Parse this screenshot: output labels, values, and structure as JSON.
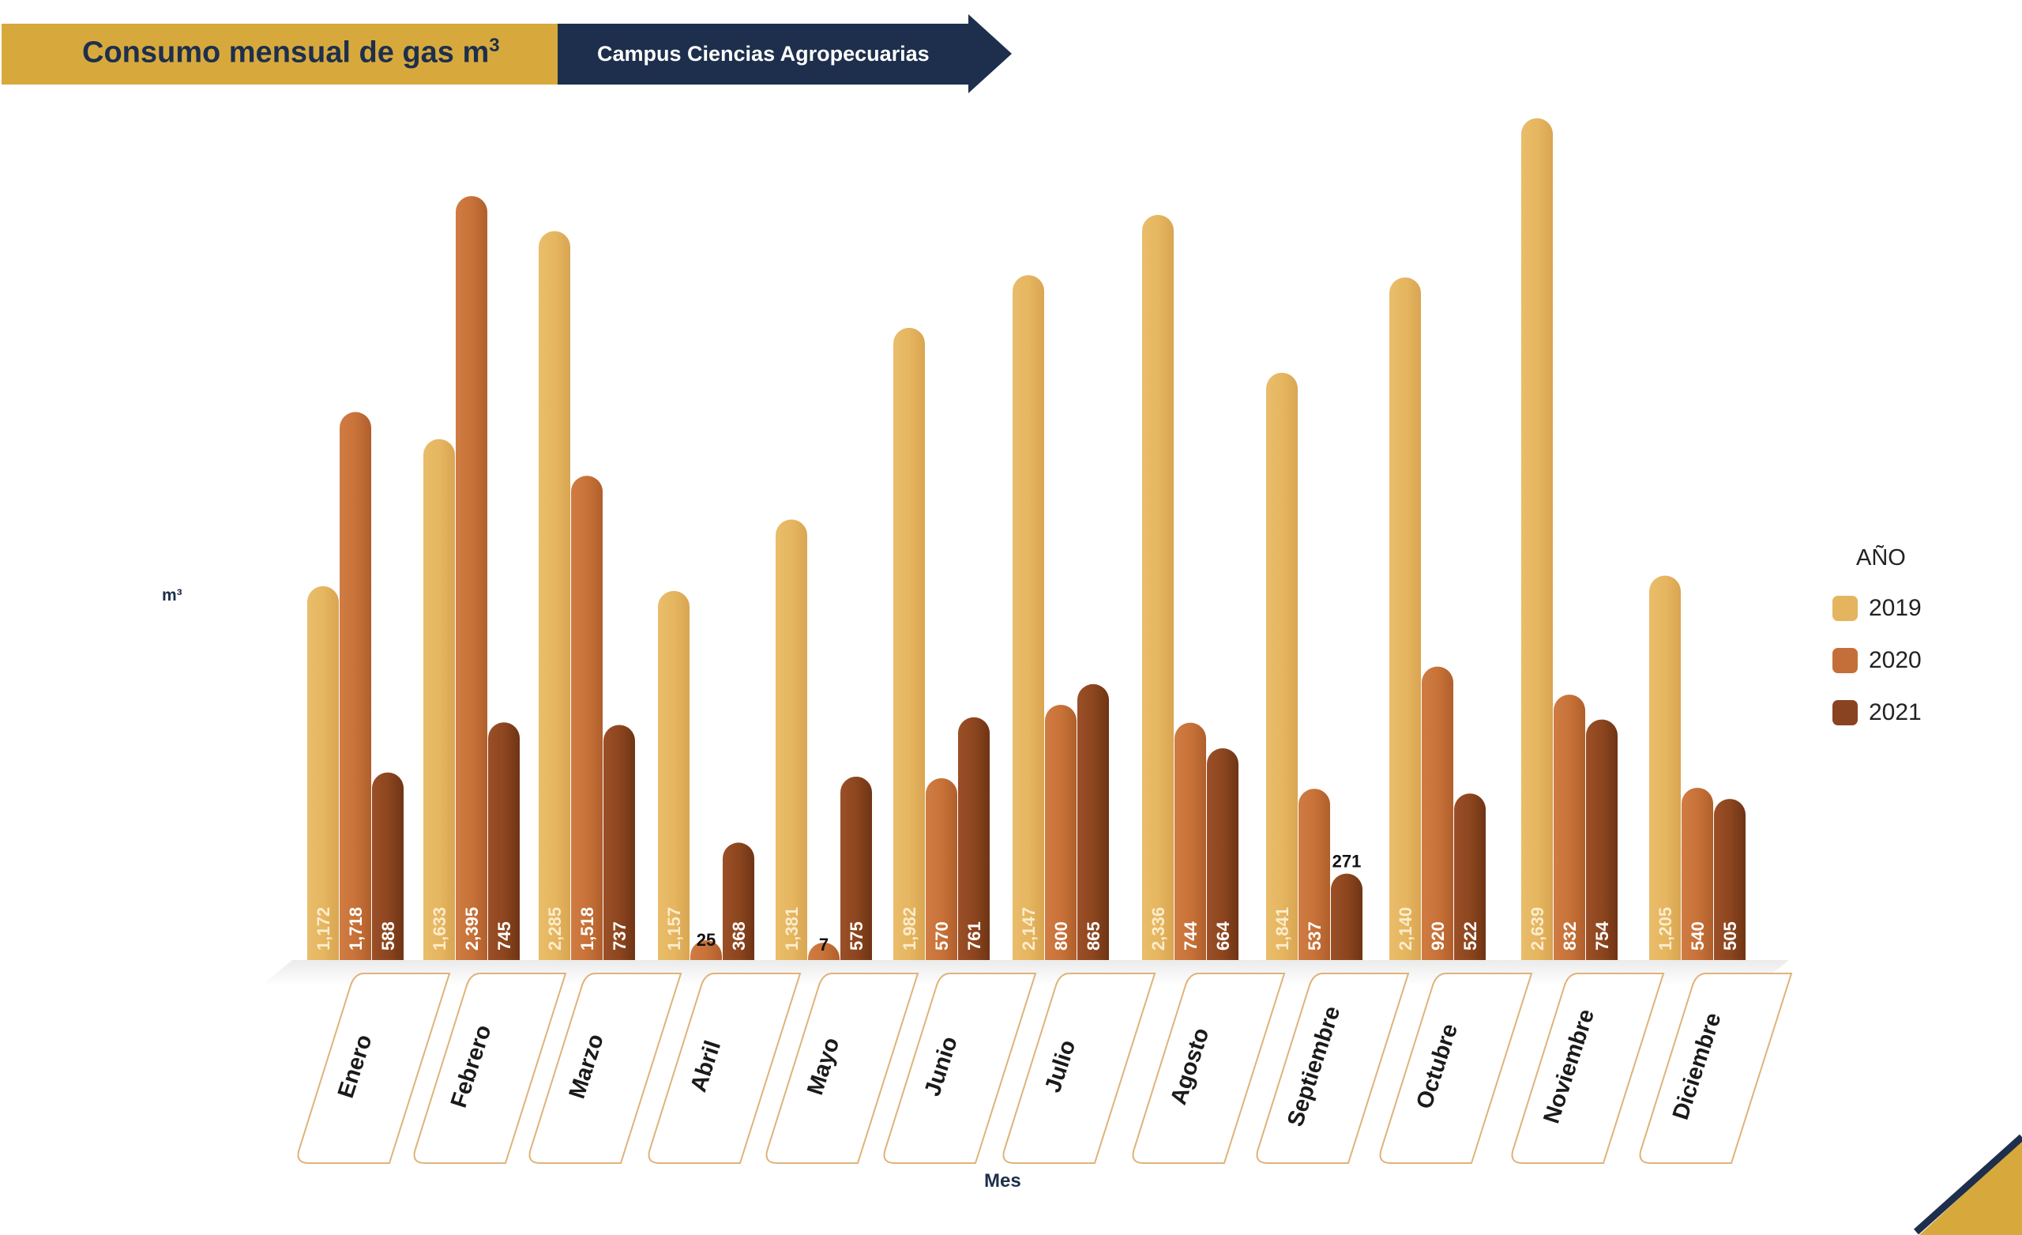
{
  "header": {
    "title": "Consumo mensual de gas m",
    "title_sup": "3",
    "subtitle": "Campus Ciencias Agropecuarias"
  },
  "colors": {
    "gold": "#d7a93c",
    "navy": "#1d2f4c",
    "bar_2019": "#e4b45f",
    "bar_2020": "#c46f3a",
    "bar_2021": "#8a4320"
  },
  "chart_data": {
    "type": "bar",
    "title": "Consumo mensual de gas m3",
    "subtitle": "Campus Ciencias Agropecuarias",
    "xlabel": "Mes",
    "ylabel": "m³",
    "legend_title": "AÑO",
    "legend_position": "right",
    "grid": false,
    "ylim": [
      0,
      2700
    ],
    "categories": [
      "Enero",
      "Febrero",
      "Marzo",
      "Abril",
      "Mayo",
      "Junio",
      "Julio",
      "Agosto",
      "Septiembre",
      "Octubre",
      "Noviembre",
      "Diciembre"
    ],
    "series": [
      {
        "name": "2019",
        "values": [
          1172,
          1633,
          2285,
          1157,
          1381,
          1982,
          2147,
          2336,
          1841,
          2140,
          2639,
          1205
        ]
      },
      {
        "name": "2020",
        "values": [
          1718,
          2395,
          1518,
          25,
          7,
          570,
          800,
          744,
          537,
          920,
          832,
          540
        ]
      },
      {
        "name": "2021",
        "values": [
          588,
          745,
          737,
          368,
          575,
          761,
          865,
          664,
          271,
          522,
          754,
          505
        ]
      }
    ]
  }
}
